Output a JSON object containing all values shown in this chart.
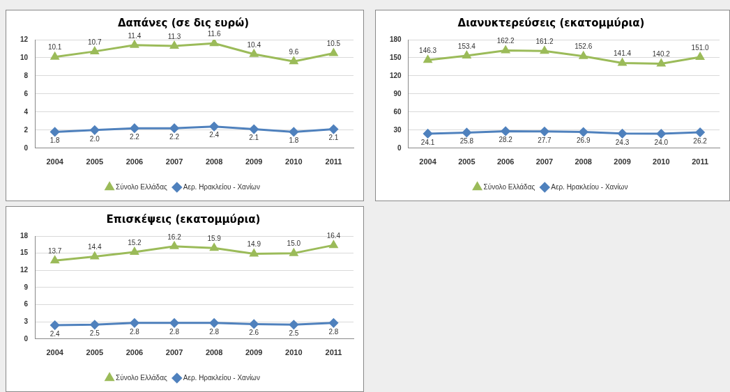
{
  "chart_data": [
    {
      "type": "line",
      "title": "Δαπάνες (σε δις ευρώ)",
      "categories": [
        "2004",
        "2005",
        "2006",
        "2007",
        "2008",
        "2009",
        "2010",
        "2011"
      ],
      "ylim": [
        0,
        12
      ],
      "yticks": [
        0,
        2,
        4,
        6,
        8,
        10,
        12
      ],
      "grid": "y",
      "legend": "bottom",
      "series": [
        {
          "name": "Σύνολο Ελλάδας",
          "color": "#9bbb59",
          "marker": "triangle",
          "values": [
            10.1,
            10.7,
            11.4,
            11.3,
            11.6,
            10.4,
            9.6,
            10.5
          ],
          "value_labels": [
            "10.1",
            "10.7",
            "11.4",
            "11.3",
            "11.6",
            "10.4",
            "9.6",
            "10.5"
          ]
        },
        {
          "name": "Αερ. Ηρακλείου - Χανίων",
          "color": "#4f81bd",
          "marker": "diamond",
          "values": [
            1.8,
            2.0,
            2.2,
            2.2,
            2.4,
            2.1,
            1.8,
            2.1
          ],
          "value_labels": [
            "1.8",
            "2.0",
            "2.2",
            "2.2",
            "2.4",
            "2.1",
            "1.8",
            "2.1"
          ]
        }
      ]
    },
    {
      "type": "line",
      "title": "Διανυκτερεύσεις (εκατομμύρια)",
      "categories": [
        "2004",
        "2005",
        "2006",
        "2007",
        "2008",
        "2009",
        "2010",
        "2011"
      ],
      "ylim": [
        0,
        180
      ],
      "yticks": [
        0,
        30,
        60,
        90,
        120,
        150,
        180
      ],
      "grid": "y",
      "legend": "bottom",
      "series": [
        {
          "name": "Σύνολο Ελλάδας",
          "color": "#9bbb59",
          "marker": "triangle",
          "values": [
            146.3,
            153.4,
            162.2,
            161.2,
            152.6,
            141.4,
            140.2,
            151.0
          ],
          "value_labels": [
            "146.3",
            "153.4",
            "162.2",
            "161.2",
            "152.6",
            "141.4",
            "140.2",
            "151.0"
          ]
        },
        {
          "name": "Αερ. Ηρακλείου - Χανίων",
          "color": "#4f81bd",
          "marker": "diamond",
          "values": [
            24.1,
            25.8,
            28.2,
            27.7,
            26.9,
            24.3,
            24.0,
            26.2
          ],
          "value_labels": [
            "24.1",
            "25.8",
            "28.2",
            "27.7",
            "26.9",
            "24.3",
            "24.0",
            "26.2"
          ]
        }
      ]
    },
    {
      "type": "line",
      "title": "Επισκέψεις (εκατομμύρια)",
      "categories": [
        "2004",
        "2005",
        "2006",
        "2007",
        "2008",
        "2009",
        "2010",
        "2011"
      ],
      "ylim": [
        0,
        18
      ],
      "yticks": [
        0,
        3,
        6,
        9,
        12,
        15,
        18
      ],
      "grid": "y",
      "legend": "bottom",
      "series": [
        {
          "name": "Σύνολο Ελλάδας",
          "color": "#9bbb59",
          "marker": "triangle",
          "values": [
            13.7,
            14.4,
            15.2,
            16.2,
            15.9,
            14.9,
            15.0,
            16.4
          ],
          "value_labels": [
            "13.7",
            "14.4",
            "15.2",
            "16.2",
            "15.9",
            "14.9",
            "15.0",
            "16.4"
          ]
        },
        {
          "name": "Αερ. Ηρακλείου - Χανίων",
          "color": "#4f81bd",
          "marker": "diamond",
          "values": [
            2.4,
            2.5,
            2.8,
            2.8,
            2.8,
            2.6,
            2.5,
            2.8
          ],
          "value_labels": [
            "2.4",
            "2.5",
            "2.8",
            "2.8",
            "2.8",
            "2.6",
            "2.5",
            "2.8"
          ]
        }
      ]
    }
  ]
}
